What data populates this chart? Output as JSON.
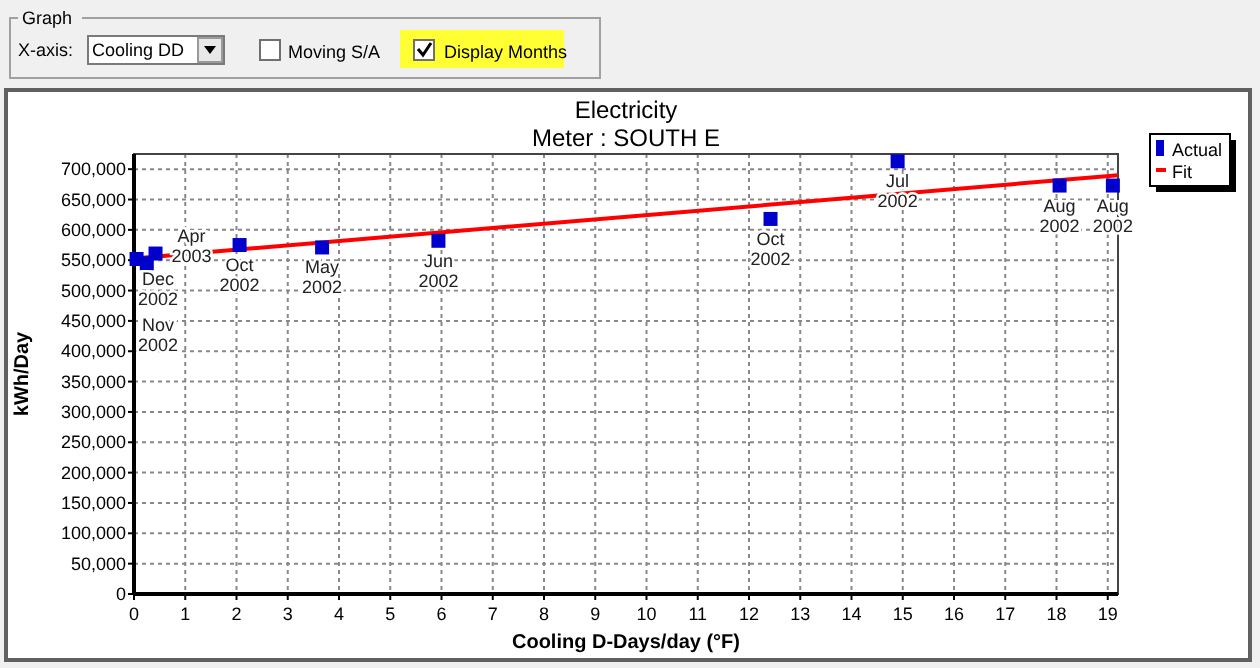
{
  "chart_data": {
    "type": "scatter",
    "title": "Electricity",
    "subtitle": "Meter : SOUTH E",
    "xlabel": "Cooling D-Days/day (°F)",
    "ylabel": "kWh/Day",
    "xlim": [
      0,
      19.2
    ],
    "xticks": [
      0,
      1,
      2,
      3,
      4,
      5,
      6,
      7,
      8,
      9,
      10,
      11,
      12,
      13,
      14,
      15,
      16,
      17,
      18,
      19
    ],
    "ylim": [
      0,
      725000
    ],
    "yticks": [
      {
        "value": 0,
        "label": "0"
      },
      {
        "value": 50000,
        "label": "50,000"
      },
      {
        "value": 100000,
        "label": "100,000"
      },
      {
        "value": 150000,
        "label": "150,000"
      },
      {
        "value": 200000,
        "label": "200,000"
      },
      {
        "value": 250000,
        "label": "250,000"
      },
      {
        "value": 300000,
        "label": "300,000"
      },
      {
        "value": 350000,
        "label": "350,000"
      },
      {
        "value": 400000,
        "label": "400,000"
      },
      {
        "value": 450000,
        "label": "450,000"
      },
      {
        "value": 500000,
        "label": "500,000"
      },
      {
        "value": 550000,
        "label": "550,000"
      },
      {
        "value": 600000,
        "label": "600,000"
      },
      {
        "value": 650000,
        "label": "650,000"
      },
      {
        "value": 700000,
        "label": "700,000"
      }
    ],
    "grid": true,
    "legend": "top right",
    "series": [
      {
        "name": "Actual",
        "marker": "square",
        "color": "#0000cc",
        "x": [
          0.05,
          0.25,
          0.42,
          2.06,
          3.67,
          5.94,
          12.42,
          14.9,
          18.06,
          19.1
        ],
        "values": [
          552000,
          545000,
          561000,
          575000,
          571000,
          582000,
          618000,
          713000,
          673000,
          673000
        ]
      },
      {
        "name": "Fit",
        "type": "line",
        "marker": "none",
        "color": "#ff0000",
        "x": [
          0,
          19.2
        ],
        "values": [
          553000,
          690000
        ]
      }
    ],
    "annotations": [
      "Graph",
      "X-axis:",
      "Cooling DD",
      "Moving S/A",
      "Display Months",
      {
        "text": "Dec 2002",
        "x": 0.05,
        "y": 552000
      },
      {
        "text": "Nov 2002",
        "x": 0.25,
        "y": 545000
      },
      {
        "text": "Apr 2003",
        "x": 0.42,
        "y": 561000
      },
      {
        "text": "Oct 2002",
        "x": 2.06,
        "y": 575000
      },
      {
        "text": "May 2002",
        "x": 3.67,
        "y": 571000
      },
      {
        "text": "Jun 2002",
        "x": 5.94,
        "y": 582000
      },
      {
        "text": "Oct 2002",
        "x": 12.42,
        "y": 618000
      },
      {
        "text": "Jul 2002",
        "x": 14.9,
        "y": 713000
      },
      {
        "text": "Aug 2002",
        "x": 18.06,
        "y": 673000
      },
      {
        "text": "Aug 2002",
        "x": 19.1,
        "y": 673000
      }
    ]
  }
}
